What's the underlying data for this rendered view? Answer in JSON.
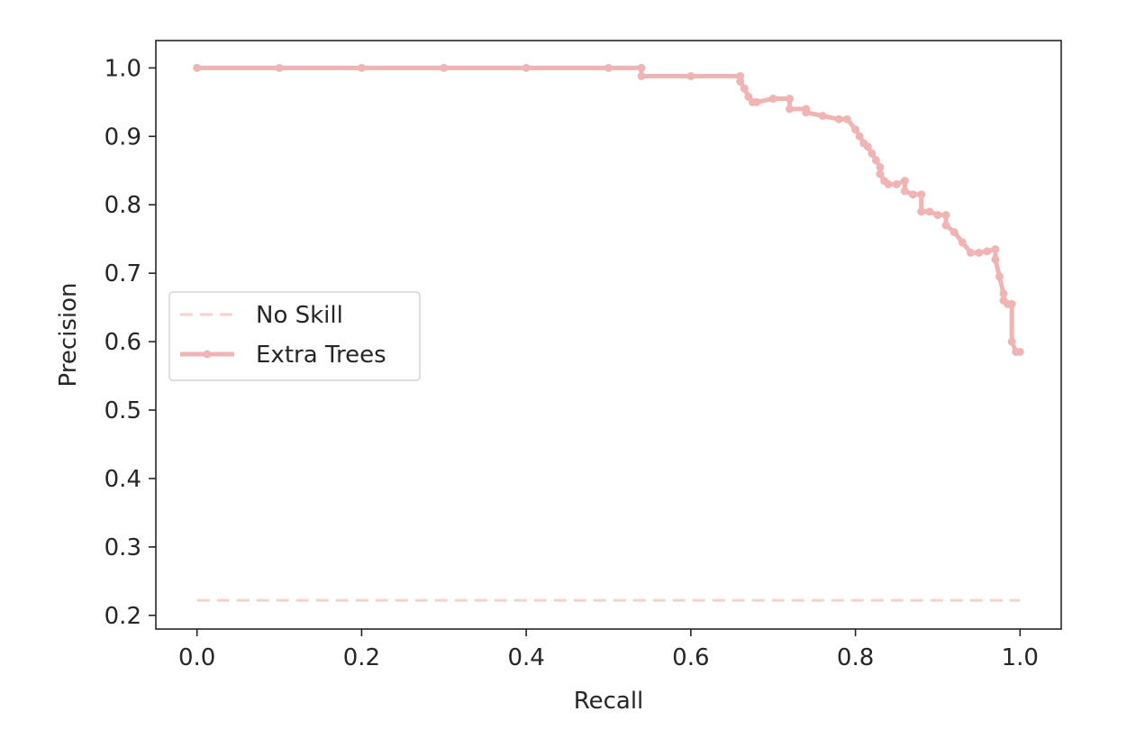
{
  "chart_data": {
    "type": "line",
    "title": "",
    "xlabel": "Recall",
    "ylabel": "Precision",
    "xlim": [
      -0.05,
      1.05
    ],
    "ylim": [
      0.18,
      1.04
    ],
    "xticks": [
      0.0,
      0.2,
      0.4,
      0.6,
      0.8,
      1.0
    ],
    "xtick_labels": [
      "0.0",
      "0.2",
      "0.4",
      "0.6",
      "0.8",
      "1.0"
    ],
    "yticks": [
      0.2,
      0.3,
      0.4,
      0.5,
      0.6,
      0.7,
      0.8,
      0.9,
      1.0
    ],
    "ytick_labels": [
      "0.2",
      "0.3",
      "0.4",
      "0.5",
      "0.6",
      "0.7",
      "0.8",
      "0.9",
      "1.0"
    ],
    "grid": false,
    "legend": {
      "placement": "center-left"
    },
    "series": [
      {
        "name": "No Skill",
        "style": "dashed",
        "marker": "none",
        "color": "#f8d0cc",
        "x": [
          0.0,
          1.0
        ],
        "y": [
          0.222,
          0.222
        ]
      },
      {
        "name": "Extra Trees",
        "style": "solid",
        "marker": "dot",
        "color": "#f0b4b4",
        "x": [
          0.0,
          0.1,
          0.2,
          0.3,
          0.4,
          0.5,
          0.54,
          0.54,
          0.6,
          0.66,
          0.66,
          0.665,
          0.67,
          0.675,
          0.68,
          0.7,
          0.72,
          0.72,
          0.74,
          0.74,
          0.76,
          0.78,
          0.79,
          0.8,
          0.805,
          0.81,
          0.815,
          0.82,
          0.825,
          0.83,
          0.83,
          0.835,
          0.84,
          0.85,
          0.86,
          0.86,
          0.87,
          0.88,
          0.88,
          0.89,
          0.9,
          0.91,
          0.91,
          0.92,
          0.93,
          0.94,
          0.95,
          0.96,
          0.97,
          0.97,
          0.975,
          0.98,
          0.98,
          0.985,
          0.99,
          0.99,
          0.995,
          1.0
        ],
        "y": [
          1.0,
          1.0,
          1.0,
          1.0,
          1.0,
          1.0,
          1.0,
          0.988,
          0.988,
          0.988,
          0.98,
          0.97,
          0.958,
          0.95,
          0.95,
          0.955,
          0.955,
          0.94,
          0.94,
          0.935,
          0.93,
          0.925,
          0.925,
          0.91,
          0.9,
          0.89,
          0.885,
          0.875,
          0.865,
          0.855,
          0.845,
          0.835,
          0.83,
          0.83,
          0.835,
          0.82,
          0.815,
          0.815,
          0.79,
          0.79,
          0.785,
          0.785,
          0.77,
          0.76,
          0.745,
          0.73,
          0.73,
          0.732,
          0.735,
          0.72,
          0.695,
          0.67,
          0.66,
          0.655,
          0.655,
          0.6,
          0.585,
          0.585
        ]
      }
    ]
  }
}
